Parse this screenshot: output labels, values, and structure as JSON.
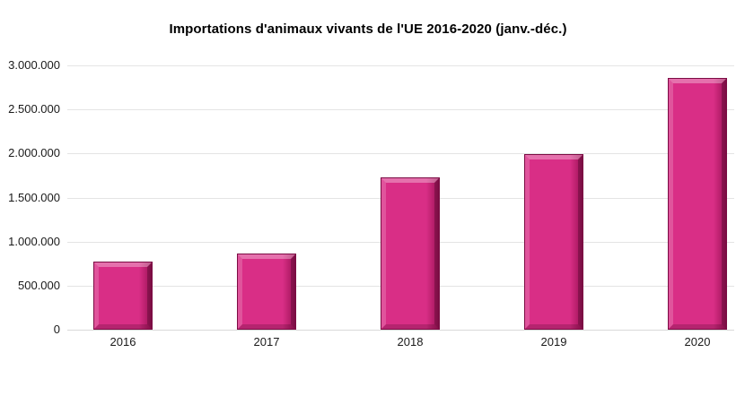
{
  "chart_data": {
    "type": "bar",
    "title": "Importations d'animaux vivants de l'UE 2016-2020 (janv.-déc.)",
    "categories": [
      "2016",
      "2017",
      "2018",
      "2019",
      "2020"
    ],
    "values": [
      770000,
      860000,
      1730000,
      1990000,
      2860000
    ],
    "xlabel": "",
    "ylabel": "",
    "ylim": [
      0,
      3000000
    ],
    "ytick_step": 500000,
    "ytick_labels": [
      "0",
      "500.000",
      "1.000.000",
      "1.500.000",
      "2.000.000",
      "2.500.000",
      "3.000.000"
    ],
    "grid": true,
    "legend_position": "none",
    "bar_fill_color": "#d92e86",
    "bar_border_color": "#7c0c44",
    "bar_highlight_color": "#f06fae",
    "bar_shadow_color": "#9c1256",
    "gridline_color": "#e4e4e4",
    "axis_line_color": "#d9d9d9",
    "text_color": "#1a1a1a",
    "background_color": "#ffffff"
  }
}
